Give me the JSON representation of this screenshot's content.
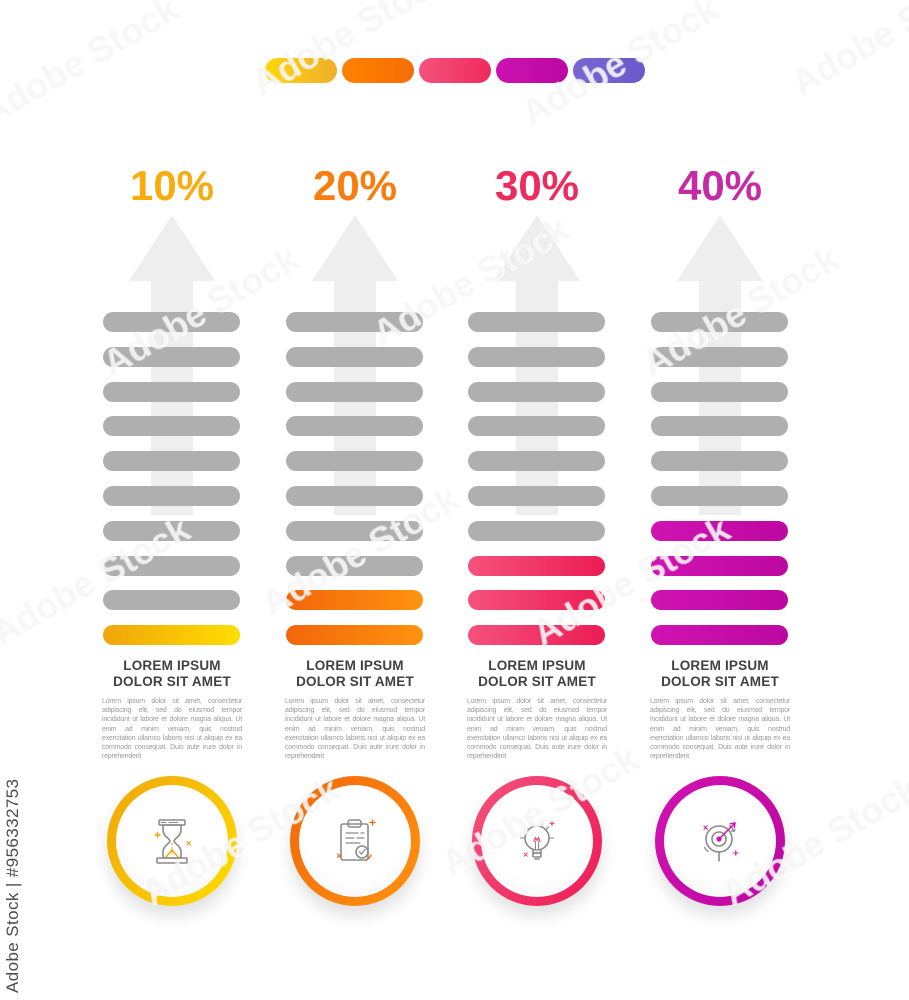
{
  "watermark": {
    "side_label": "Adobe Stock | #956332753",
    "tile_label": "Adobe Stock"
  },
  "legend_pills": [
    {
      "name": "yellow-pill",
      "from": "#FFD60A",
      "to": "#EFAF2B"
    },
    {
      "name": "orange-pill",
      "from": "#FF8201",
      "to": "#F66D03"
    },
    {
      "name": "pink-pill",
      "from": "#F4527C",
      "to": "#EF2B5E"
    },
    {
      "name": "magenta-pill",
      "from": "#CC13B0",
      "to": "#BD07A1"
    },
    {
      "name": "purple-pill",
      "from": "#7768D2",
      "to": "#6C58C9"
    }
  ],
  "colors": {
    "gray_bar": "#B0AFAF",
    "arrow": "#EFEEEE",
    "heading": "#414141",
    "body_text": "#9B9B9B"
  },
  "columns": [
    {
      "percent": "10%",
      "percent_color": "#F8AC0D",
      "accent_from": "#F0A50B",
      "accent_to": "#FFDE00",
      "bars_total": 10,
      "bars_colored": 1,
      "heading_line1": "LOREM IPSUM",
      "heading_line2": "DOLOR SIT AMET",
      "body": "Lorem ipsum dolor sit amet, consectetur adipiscing elit, sed do eiusmod tempor incididunt ut labore et dolore magna aliqua. Ut enim ad minim veniam, quis nostrud exercitation ullamco laboris nisi ut aliquip ex ea commodo consequat. Duis aute irure dolor in reprehenderit",
      "icon": "hourglass-icon"
    },
    {
      "percent": "20%",
      "percent_color": "#F87D0D",
      "accent_from": "#F2660B",
      "accent_to": "#FF930F",
      "bars_total": 10,
      "bars_colored": 2,
      "heading_line1": "LOREM IPSUM",
      "heading_line2": "DOLOR SIT AMET",
      "body": "Lorem ipsum dolor sit amet, consectetur adipiscing elit, sed do eiusmod tempor incididunt ut labore et dolore magna aliqua. Ut enim ad minim veniam, quis nostrud exercitation ullamco laboris nisi ut aliquip ex ea commodo consequat. Duis aute irure dolor in reprehenderit",
      "icon": "clipboard-icon"
    },
    {
      "percent": "30%",
      "percent_color": "#ED2B5E",
      "accent_from": "#F4527C",
      "accent_to": "#EC1C55",
      "bars_total": 10,
      "bars_colored": 3,
      "heading_line1": "LOREM IPSUM",
      "heading_line2": "DOLOR SIT AMET",
      "body": "Lorem ipsum dolor sit amet, consectetur adipiscing elit, sed do eiusmod tempor incididunt ut labore et dolore magna aliqua. Ut enim ad minim veniam, quis nostrud exercitation ullamco laboris nisi ut aliquip ex ea commodo consequat. Duis aute irure dolor in reprehenderit",
      "icon": "lightbulb-icon"
    },
    {
      "percent": "40%",
      "percent_color": "#C52BA5",
      "accent_from": "#D013B2",
      "accent_to": "#BC08A0",
      "bars_total": 10,
      "bars_colored": 4,
      "heading_line1": "LOREM IPSUM",
      "heading_line2": "DOLOR SIT AMET",
      "body": "Lorem ipsum dolor sit amet, consectetur adipiscing elit, sed do eiusmod tempor incididunt ut labore et dolore magna aliqua. Ut enim ad minim veniam, quis nostrud exercitation ullamco laboris nisi ut aliquip ex ea commodo consequat. Duis aute irure dolor in reprehenderit",
      "icon": "target-icon"
    }
  ]
}
